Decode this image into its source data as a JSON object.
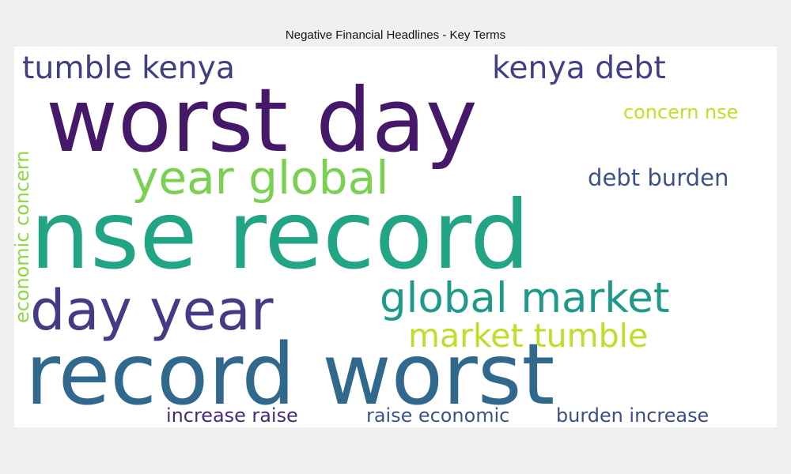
{
  "chart_data": {
    "type": "wordcloud",
    "title": "Negative Financial Headlines - Key Terms",
    "terms": [
      {
        "text": "record worst",
        "color": "#31688e"
      },
      {
        "text": "nse record",
        "color": "#21a585"
      },
      {
        "text": "worst day",
        "color": "#46186a"
      },
      {
        "text": "day year",
        "color": "#433c84"
      },
      {
        "text": "year global",
        "color": "#7ad151"
      },
      {
        "text": "global market",
        "color": "#1f9a8a"
      },
      {
        "text": "tumble kenya",
        "color": "#3f3e81"
      },
      {
        "text": "kenya debt",
        "color": "#423f85"
      },
      {
        "text": "market tumble",
        "color": "#bcdf27"
      },
      {
        "text": "debt burden",
        "color": "#3b528b"
      },
      {
        "text": "concern nse",
        "color": "#c2df23"
      },
      {
        "text": "economic concern",
        "color": "#8fd744"
      },
      {
        "text": "increase raise",
        "color": "#472a7a"
      },
      {
        "text": "raise economic",
        "color": "#3b528b"
      },
      {
        "text": "burden increase",
        "color": "#3e4a89"
      }
    ]
  }
}
